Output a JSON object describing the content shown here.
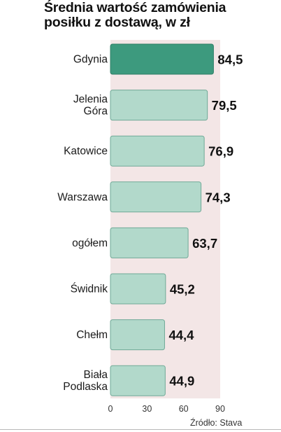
{
  "title_line1": "Średnia wartość zamówienia",
  "title_line2": "posiłku z dostawą, w zł",
  "source": "Źródło: Stava",
  "colors": {
    "highlight_bar": "#3d9a7e",
    "bar": "#b2d9cb",
    "bar_stroke": "#6fa997",
    "plot_band": "#f3e6e6"
  },
  "chart_data": {
    "type": "bar",
    "orientation": "horizontal",
    "title": "Średnia wartość zamówienia posiłku z dostawą, w zł",
    "categories": [
      [
        "Gdynia"
      ],
      [
        "Jelenia",
        "Góra"
      ],
      [
        "Katowice"
      ],
      [
        "Warszawa"
      ],
      [
        "ogółem"
      ],
      [
        "Świdnik"
      ],
      [
        "Chełm"
      ],
      [
        "Biała",
        "Podlaska"
      ]
    ],
    "values": [
      84.5,
      79.5,
      76.9,
      74.3,
      63.7,
      45.2,
      44.4,
      44.9
    ],
    "value_labels": [
      "84,5",
      "79,5",
      "76,9",
      "74,3",
      "63,7",
      "45,2",
      "44,4",
      "44,9"
    ],
    "highlight_index": 0,
    "xlim": [
      0,
      90
    ],
    "xticks": [
      0,
      30,
      60,
      90
    ],
    "grid": false,
    "source": "Źródło: Stava"
  }
}
